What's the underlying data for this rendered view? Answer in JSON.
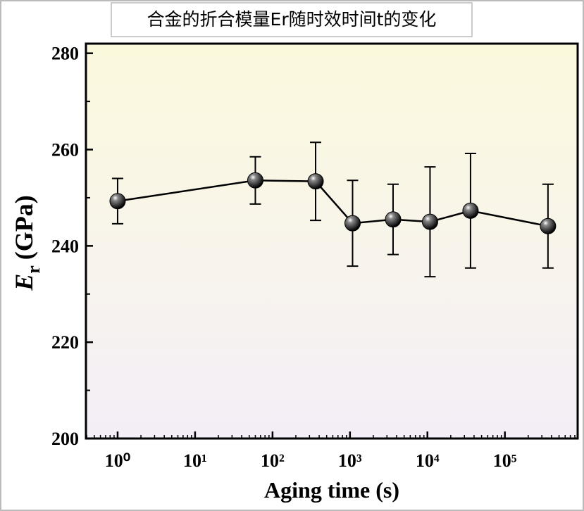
{
  "chart_data": {
    "type": "errorline",
    "title": "合金的折合模量Er随时效时间t的变化",
    "xlabel": "Aging time (s)",
    "ylabel": "E",
    "ylabel_sub": "r",
    "ylabel_unit": "(GPa)",
    "x": [
      1,
      60,
      360,
      1080,
      3600,
      10800,
      36000,
      360000
    ],
    "values": [
      249.3,
      253.6,
      253.4,
      244.7,
      245.5,
      245.0,
      247.3,
      244.1
    ],
    "errors": [
      4.7,
      4.9,
      8.1,
      8.9,
      7.3,
      11.4,
      11.9,
      8.7
    ],
    "color": "#000000",
    "xlog": true,
    "xlim": [
      0.39,
      870000
    ],
    "xticks": [
      {
        "value": 1,
        "label": "10⁰"
      },
      {
        "value": 10,
        "label": "10¹"
      },
      {
        "value": 100,
        "label": "10²"
      },
      {
        "value": 1000,
        "label": "10³"
      },
      {
        "value": 10000,
        "label": "10⁴"
      },
      {
        "value": 100000,
        "label": "10⁵"
      }
    ],
    "ylim": [
      200,
      282
    ],
    "yticks": [
      200,
      220,
      240,
      260,
      280
    ]
  }
}
